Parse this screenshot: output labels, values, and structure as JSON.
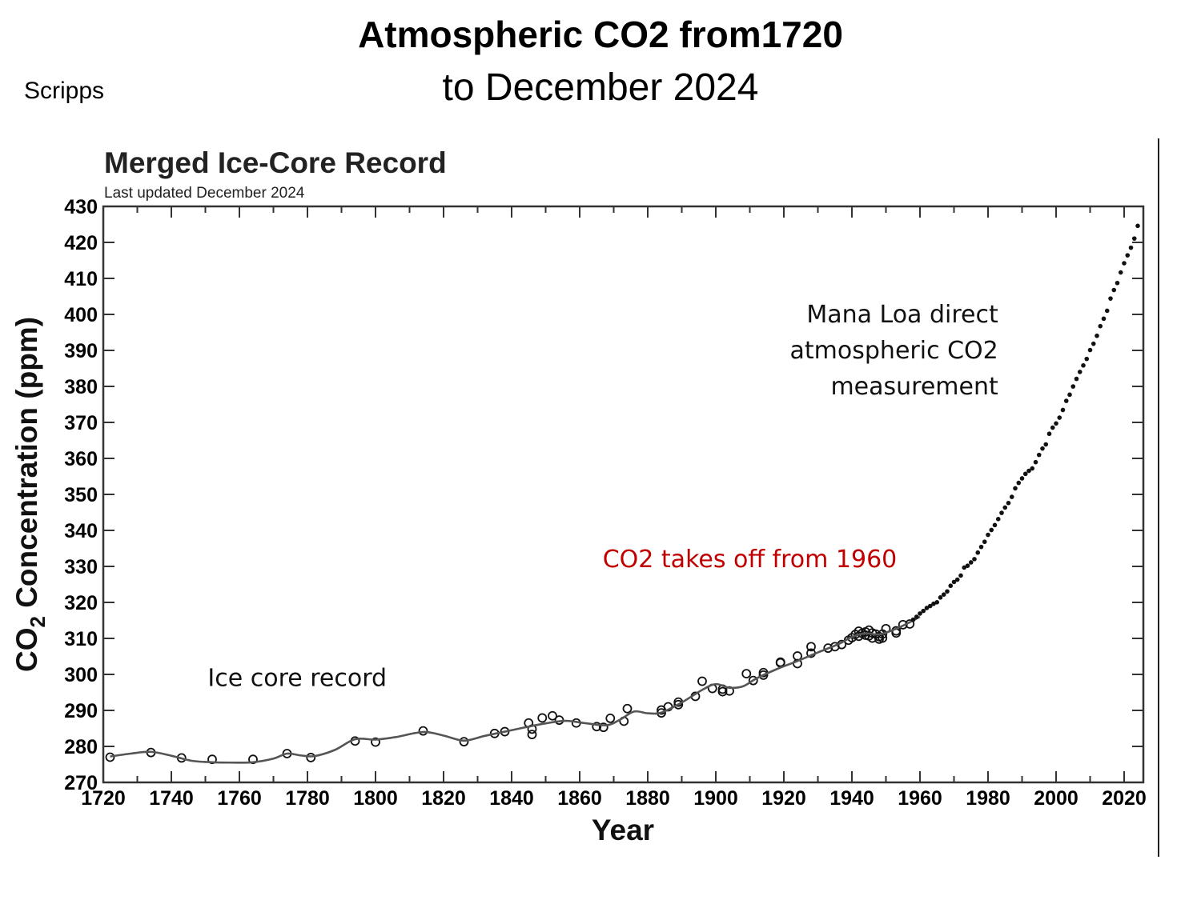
{
  "slide": {
    "title_line1": "Atmospheric CO2 from1720",
    "title_line2": "to December 2024",
    "source": "Scripps"
  },
  "chart_data": {
    "type": "scatter",
    "title": "Merged Ice-Core Record",
    "subtitle": "Last updated December 2024",
    "xlabel": "Year",
    "ylabel_main": "CO",
    "ylabel_sub": "2",
    "ylabel_rest": " Concentration (ppm)",
    "xlim": [
      1720,
      2026
    ],
    "ylim": [
      270,
      430
    ],
    "x_ticks": [
      1720,
      1740,
      1760,
      1780,
      1800,
      1820,
      1840,
      1860,
      1880,
      1900,
      1920,
      1940,
      1960,
      1980,
      2000,
      2020
    ],
    "x_tick_labels": [
      "1720",
      "1740",
      "1760",
      "1780",
      "1800",
      "1820",
      "1840",
      "1860",
      "1880",
      "1900",
      "1920",
      "1940",
      "1960",
      "1980",
      "2000",
      "2020"
    ],
    "y_ticks": [
      270,
      280,
      290,
      300,
      310,
      320,
      330,
      340,
      350,
      360,
      370,
      380,
      390,
      400,
      410,
      420,
      430
    ],
    "y_tick_labels": [
      "270",
      "280",
      "290",
      "300",
      "310",
      "320",
      "330",
      "340",
      "350",
      "360",
      "370",
      "380",
      "390",
      "400",
      "410",
      "420",
      "430"
    ],
    "grid": false,
    "colors": {
      "annotation_red": "#c00000",
      "curve": "#555555",
      "points": "#111111"
    },
    "annotations": [
      {
        "text": "Ice core record",
        "x": 1777,
        "y": 299,
        "color": "#111111",
        "align": "middle"
      },
      {
        "text": "CO2 takes off from 1960",
        "x": 1910,
        "y": 332,
        "color": "#c00000",
        "align": "middle"
      },
      {
        "text": "Mana Loa direct",
        "x": 1983,
        "y": 400,
        "color": "#111111",
        "align": "end"
      },
      {
        "text": "atmospheric CO2",
        "x": 1983,
        "y": 390,
        "color": "#111111",
        "align": "end"
      },
      {
        "text": "measurement",
        "x": 1983,
        "y": 380,
        "color": "#111111",
        "align": "end"
      }
    ],
    "series": [
      {
        "name": "Ice core samples",
        "marker": "open-circle",
        "points": [
          [
            1722,
            277.0
          ],
          [
            1734,
            278.3
          ],
          [
            1743,
            276.8
          ],
          [
            1752,
            276.4
          ],
          [
            1764,
            276.4
          ],
          [
            1774,
            278.0
          ],
          [
            1781,
            276.9
          ],
          [
            1794,
            281.5
          ],
          [
            1800,
            281.2
          ],
          [
            1814,
            284.3
          ],
          [
            1826,
            281.3
          ],
          [
            1835,
            283.6
          ],
          [
            1838,
            284.1
          ],
          [
            1845,
            286.5
          ],
          [
            1846,
            284.8
          ],
          [
            1846,
            283.3
          ],
          [
            1849,
            287.9
          ],
          [
            1852,
            288.5
          ],
          [
            1854,
            287.3
          ],
          [
            1859,
            286.5
          ],
          [
            1865,
            285.5
          ],
          [
            1867,
            285.3
          ],
          [
            1869,
            287.8
          ],
          [
            1873,
            287.0
          ],
          [
            1874,
            290.5
          ],
          [
            1884,
            289.3
          ],
          [
            1884,
            290.1
          ],
          [
            1886,
            291.0
          ],
          [
            1889,
            291.6
          ],
          [
            1889,
            292.3
          ],
          [
            1894,
            293.9
          ],
          [
            1896,
            298.1
          ],
          [
            1899,
            296.1
          ],
          [
            1902,
            295.2
          ],
          [
            1902,
            295.9
          ],
          [
            1904,
            295.4
          ],
          [
            1909,
            300.2
          ],
          [
            1911,
            298.3
          ],
          [
            1914,
            300.5
          ],
          [
            1914,
            299.8
          ],
          [
            1919,
            303.4
          ],
          [
            1919,
            303.2
          ],
          [
            1924,
            303.0
          ],
          [
            1924,
            305.1
          ],
          [
            1928,
            307.7
          ],
          [
            1928,
            305.9
          ],
          [
            1933,
            307.3
          ],
          [
            1935,
            307.7
          ],
          [
            1937,
            308.3
          ],
          [
            1939,
            309.5
          ],
          [
            1940,
            310.2
          ],
          [
            1941,
            311.1
          ],
          [
            1942,
            312.0
          ],
          [
            1942,
            310.6
          ],
          [
            1943,
            311.4
          ],
          [
            1944,
            310.9
          ],
          [
            1944,
            311.8
          ],
          [
            1945,
            312.3
          ],
          [
            1945,
            310.7
          ],
          [
            1946,
            311.5
          ],
          [
            1946,
            310.1
          ],
          [
            1947,
            311.2
          ],
          [
            1948,
            309.8
          ],
          [
            1948,
            310.5
          ],
          [
            1949,
            311.2
          ],
          [
            1949,
            310.1
          ],
          [
            1950,
            312.7
          ],
          [
            1953,
            312.1
          ],
          [
            1953,
            311.5
          ],
          [
            1955,
            313.8
          ],
          [
            1957,
            314.0
          ]
        ]
      },
      {
        "name": "Ice core spline fit",
        "marker": "line",
        "points": [
          [
            1722,
            277.2
          ],
          [
            1728,
            278.0
          ],
          [
            1734,
            278.5
          ],
          [
            1740,
            277.4
          ],
          [
            1746,
            276.0
          ],
          [
            1752,
            275.6
          ],
          [
            1758,
            275.5
          ],
          [
            1764,
            275.6
          ],
          [
            1770,
            276.6
          ],
          [
            1774,
            278.0
          ],
          [
            1778,
            277.5
          ],
          [
            1782,
            277.3
          ],
          [
            1788,
            279.0
          ],
          [
            1794,
            282.0
          ],
          [
            1800,
            281.9
          ],
          [
            1806,
            282.6
          ],
          [
            1814,
            284.0
          ],
          [
            1820,
            283.0
          ],
          [
            1826,
            281.6
          ],
          [
            1832,
            282.9
          ],
          [
            1838,
            284.1
          ],
          [
            1844,
            285.3
          ],
          [
            1850,
            286.4
          ],
          [
            1856,
            287.1
          ],
          [
            1862,
            286.4
          ],
          [
            1868,
            285.9
          ],
          [
            1872,
            287.5
          ],
          [
            1876,
            289.7
          ],
          [
            1880,
            289.2
          ],
          [
            1884,
            289.4
          ],
          [
            1890,
            292.2
          ],
          [
            1896,
            295.7
          ],
          [
            1900,
            297.3
          ],
          [
            1904,
            296.3
          ],
          [
            1908,
            296.7
          ],
          [
            1912,
            298.9
          ],
          [
            1918,
            301.5
          ],
          [
            1924,
            303.7
          ],
          [
            1930,
            306.1
          ],
          [
            1936,
            308.4
          ],
          [
            1940,
            310.4
          ],
          [
            1944,
            311.4
          ],
          [
            1948,
            311.1
          ],
          [
            1952,
            312.3
          ],
          [
            1956,
            314.0
          ],
          [
            1960,
            316.0
          ]
        ]
      },
      {
        "name": "Mauna Loa annual mean",
        "marker": "filled-dot",
        "points": [
          [
            1958,
            315.2
          ],
          [
            1959,
            315.98
          ],
          [
            1960,
            316.91
          ],
          [
            1961,
            317.64
          ],
          [
            1962,
            318.45
          ],
          [
            1963,
            318.99
          ],
          [
            1964,
            319.62
          ],
          [
            1965,
            320.04
          ],
          [
            1966,
            321.37
          ],
          [
            1967,
            322.18
          ],
          [
            1968,
            323.05
          ],
          [
            1969,
            324.62
          ],
          [
            1970,
            325.68
          ],
          [
            1971,
            326.32
          ],
          [
            1972,
            327.46
          ],
          [
            1973,
            329.68
          ],
          [
            1974,
            330.19
          ],
          [
            1975,
            331.12
          ],
          [
            1976,
            332.03
          ],
          [
            1977,
            333.84
          ],
          [
            1978,
            335.41
          ],
          [
            1979,
            336.84
          ],
          [
            1980,
            338.76
          ],
          [
            1981,
            340.12
          ],
          [
            1982,
            341.48
          ],
          [
            1983,
            343.15
          ],
          [
            1984,
            344.87
          ],
          [
            1985,
            346.35
          ],
          [
            1986,
            347.61
          ],
          [
            1987,
            349.31
          ],
          [
            1988,
            351.69
          ],
          [
            1989,
            353.2
          ],
          [
            1990,
            354.45
          ],
          [
            1991,
            355.7
          ],
          [
            1992,
            356.54
          ],
          [
            1993,
            357.21
          ],
          [
            1994,
            358.96
          ],
          [
            1995,
            360.97
          ],
          [
            1996,
            362.74
          ],
          [
            1997,
            363.88
          ],
          [
            1998,
            366.84
          ],
          [
            1999,
            368.54
          ],
          [
            2000,
            369.71
          ],
          [
            2001,
            371.32
          ],
          [
            2002,
            373.45
          ],
          [
            2003,
            375.98
          ],
          [
            2004,
            377.7
          ],
          [
            2005,
            379.98
          ],
          [
            2006,
            382.09
          ],
          [
            2007,
            384.02
          ],
          [
            2008,
            385.83
          ],
          [
            2009,
            387.64
          ],
          [
            2010,
            390.1
          ],
          [
            2011,
            391.85
          ],
          [
            2012,
            394.06
          ],
          [
            2013,
            396.74
          ],
          [
            2014,
            398.81
          ],
          [
            2015,
            401.01
          ],
          [
            2016,
            404.41
          ],
          [
            2017,
            406.76
          ],
          [
            2018,
            408.72
          ],
          [
            2019,
            411.65
          ],
          [
            2020,
            414.21
          ],
          [
            2021,
            416.41
          ],
          [
            2022,
            418.53
          ],
          [
            2023,
            421.08
          ],
          [
            2024,
            424.6
          ]
        ]
      }
    ]
  }
}
